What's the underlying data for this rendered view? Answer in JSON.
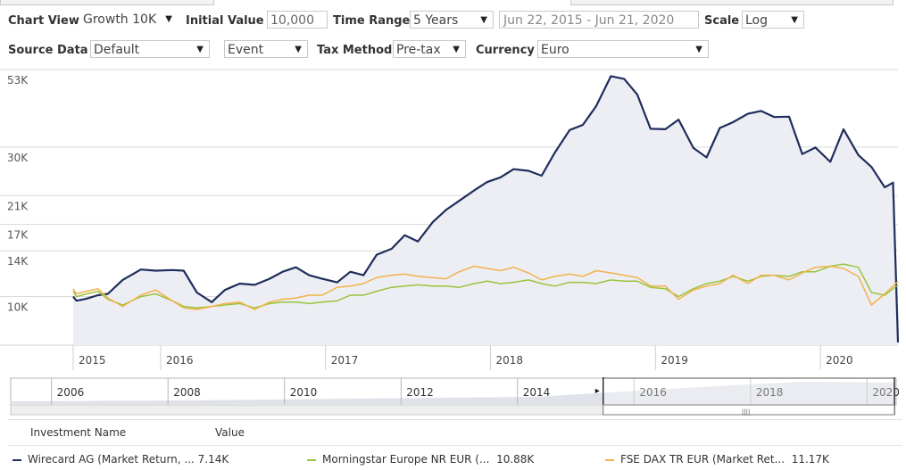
{
  "controls": {
    "chart_view_label": "Chart View",
    "chart_view_value": "Growth 10K",
    "initial_value_label": "Initial Value",
    "initial_value": "10,000",
    "time_range_label": "Time Range",
    "time_range_value": "5 Years",
    "date_range": "Jun 22, 2015 - Jun 21, 2020",
    "scale_label": "Scale",
    "scale_value": "Log",
    "source_data_label": "Source Data",
    "source_data_value": "Default",
    "event_value": "Event",
    "tax_method_label": "Tax Method",
    "tax_method_value": "Pre-tax",
    "currency_label": "Currency",
    "currency_value": "Euro",
    "dropdown_glyph": "▼"
  },
  "chart_data": {
    "type": "line",
    "y_scale": "log",
    "ylim": [
      7000,
      53000
    ],
    "y_ticks": [
      {
        "value": 10000,
        "label": "10K"
      },
      {
        "value": 14000,
        "label": "14K"
      },
      {
        "value": 17000,
        "label": "17K"
      },
      {
        "value": 21000,
        "label": "21K"
      },
      {
        "value": 30000,
        "label": "30K"
      },
      {
        "value": 53000,
        "label": "53K"
      }
    ],
    "x_range": [
      2015.47,
      2020.47
    ],
    "x_ticks": [
      {
        "value": 2015.0,
        "label": "2015"
      },
      {
        "value": 2016.0,
        "label": "2016"
      },
      {
        "value": 2017.0,
        "label": "2017"
      },
      {
        "value": 2018.0,
        "label": "2018"
      },
      {
        "value": 2019.0,
        "label": "2019"
      },
      {
        "value": 2020.0,
        "label": "2020"
      }
    ],
    "grid": true,
    "series": [
      {
        "name": "Wirecard AG (Market Return, ...",
        "color": "#1f2d5c",
        "filled": true,
        "final_value_label": "7.14K",
        "points": [
          [
            2015.47,
            10000
          ],
          [
            2015.49,
            9700
          ],
          [
            2015.55,
            9850
          ],
          [
            2015.62,
            10100
          ],
          [
            2015.68,
            10200
          ],
          [
            2015.77,
            11300
          ],
          [
            2015.88,
            12200
          ],
          [
            2015.97,
            12100
          ],
          [
            2016.07,
            12150
          ],
          [
            2016.14,
            12100
          ],
          [
            2016.22,
            10300
          ],
          [
            2016.31,
            9600
          ],
          [
            2016.39,
            10500
          ],
          [
            2016.48,
            11000
          ],
          [
            2016.57,
            10900
          ],
          [
            2016.66,
            11400
          ],
          [
            2016.74,
            12000
          ],
          [
            2016.82,
            12400
          ],
          [
            2016.9,
            11700
          ],
          [
            2016.98,
            11400
          ],
          [
            2017.07,
            11100
          ],
          [
            2017.15,
            12000
          ],
          [
            2017.23,
            11700
          ],
          [
            2017.31,
            13600
          ],
          [
            2017.4,
            14200
          ],
          [
            2017.48,
            15700
          ],
          [
            2017.56,
            15000
          ],
          [
            2017.65,
            17300
          ],
          [
            2017.73,
            18900
          ],
          [
            2017.81,
            20200
          ],
          [
            2017.9,
            21800
          ],
          [
            2017.98,
            23200
          ],
          [
            2018.06,
            24000
          ],
          [
            2018.14,
            25500
          ],
          [
            2018.23,
            25200
          ],
          [
            2018.31,
            24300
          ],
          [
            2018.39,
            28800
          ],
          [
            2018.48,
            34000
          ],
          [
            2018.56,
            35300
          ],
          [
            2018.64,
            40500
          ],
          [
            2018.73,
            50500
          ],
          [
            2018.81,
            49500
          ],
          [
            2018.89,
            44100
          ],
          [
            2018.97,
            34300
          ],
          [
            2019.06,
            34200
          ],
          [
            2019.14,
            36700
          ],
          [
            2019.23,
            29800
          ],
          [
            2019.31,
            27800
          ],
          [
            2019.39,
            34500
          ],
          [
            2019.47,
            36000
          ],
          [
            2019.56,
            38300
          ],
          [
            2019.64,
            39100
          ],
          [
            2019.72,
            37400
          ],
          [
            2019.81,
            37500
          ],
          [
            2019.89,
            28500
          ],
          [
            2019.97,
            29900
          ],
          [
            2020.06,
            26900
          ],
          [
            2020.14,
            34200
          ],
          [
            2020.23,
            28300
          ],
          [
            2020.31,
            25900
          ],
          [
            2020.39,
            22300
          ],
          [
            2020.44,
            23100
          ],
          [
            2020.47,
            7140
          ]
        ]
      },
      {
        "name": "Morningstar Europe NR EUR (...",
        "color": "#9ac43c",
        "filled": false,
        "final_value_label": "10.88K",
        "points": [
          [
            2015.47,
            10400
          ],
          [
            2015.49,
            10000
          ],
          [
            2015.55,
            10200
          ],
          [
            2015.62,
            10400
          ],
          [
            2015.68,
            9800
          ],
          [
            2015.77,
            9400
          ],
          [
            2015.88,
            10000
          ],
          [
            2015.97,
            10200
          ],
          [
            2016.07,
            9700
          ],
          [
            2016.14,
            9300
          ],
          [
            2016.22,
            9200
          ],
          [
            2016.31,
            9300
          ],
          [
            2016.39,
            9400
          ],
          [
            2016.48,
            9500
          ],
          [
            2016.57,
            9200
          ],
          [
            2016.66,
            9500
          ],
          [
            2016.74,
            9600
          ],
          [
            2016.82,
            9600
          ],
          [
            2016.9,
            9500
          ],
          [
            2016.98,
            9600
          ],
          [
            2017.07,
            9700
          ],
          [
            2017.15,
            10100
          ],
          [
            2017.23,
            10100
          ],
          [
            2017.31,
            10400
          ],
          [
            2017.4,
            10700
          ],
          [
            2017.48,
            10800
          ],
          [
            2017.56,
            10900
          ],
          [
            2017.65,
            10800
          ],
          [
            2017.73,
            10800
          ],
          [
            2017.81,
            10700
          ],
          [
            2017.9,
            11000
          ],
          [
            2017.98,
            11200
          ],
          [
            2018.06,
            11000
          ],
          [
            2018.14,
            11100
          ],
          [
            2018.23,
            11300
          ],
          [
            2018.31,
            11000
          ],
          [
            2018.39,
            10800
          ],
          [
            2018.48,
            11100
          ],
          [
            2018.56,
            11100
          ],
          [
            2018.64,
            11000
          ],
          [
            2018.73,
            11300
          ],
          [
            2018.81,
            11200
          ],
          [
            2018.89,
            11200
          ],
          [
            2018.97,
            10700
          ],
          [
            2019.06,
            10600
          ],
          [
            2019.14,
            10000
          ],
          [
            2019.23,
            10600
          ],
          [
            2019.31,
            11000
          ],
          [
            2019.39,
            11200
          ],
          [
            2019.47,
            11600
          ],
          [
            2019.56,
            11200
          ],
          [
            2019.64,
            11600
          ],
          [
            2019.72,
            11700
          ],
          [
            2019.81,
            11600
          ],
          [
            2019.89,
            12000
          ],
          [
            2019.97,
            12000
          ],
          [
            2020.06,
            12500
          ],
          [
            2020.14,
            12700
          ],
          [
            2020.23,
            12400
          ],
          [
            2020.31,
            10300
          ],
          [
            2020.39,
            10100
          ],
          [
            2020.44,
            10600
          ],
          [
            2020.47,
            10880
          ]
        ]
      },
      {
        "name": "FSE DAX TR EUR (Market Ret...",
        "color": "#f3b24a",
        "filled": false,
        "final_value_label": "11.17K",
        "points": [
          [
            2015.47,
            10600
          ],
          [
            2015.49,
            10200
          ],
          [
            2015.55,
            10400
          ],
          [
            2015.62,
            10600
          ],
          [
            2015.68,
            9900
          ],
          [
            2015.77,
            9300
          ],
          [
            2015.88,
            10100
          ],
          [
            2015.97,
            10500
          ],
          [
            2016.07,
            9700
          ],
          [
            2016.14,
            9200
          ],
          [
            2016.22,
            9100
          ],
          [
            2016.31,
            9300
          ],
          [
            2016.39,
            9500
          ],
          [
            2016.48,
            9600
          ],
          [
            2016.57,
            9100
          ],
          [
            2016.66,
            9600
          ],
          [
            2016.74,
            9800
          ],
          [
            2016.82,
            9900
          ],
          [
            2016.9,
            10100
          ],
          [
            2016.98,
            10100
          ],
          [
            2017.07,
            10700
          ],
          [
            2017.15,
            10800
          ],
          [
            2017.23,
            11000
          ],
          [
            2017.31,
            11500
          ],
          [
            2017.4,
            11700
          ],
          [
            2017.48,
            11800
          ],
          [
            2017.56,
            11600
          ],
          [
            2017.65,
            11500
          ],
          [
            2017.73,
            11400
          ],
          [
            2017.81,
            12000
          ],
          [
            2017.9,
            12500
          ],
          [
            2017.98,
            12300
          ],
          [
            2018.06,
            12100
          ],
          [
            2018.14,
            12400
          ],
          [
            2018.23,
            11900
          ],
          [
            2018.31,
            11300
          ],
          [
            2018.39,
            11600
          ],
          [
            2018.48,
            11800
          ],
          [
            2018.56,
            11600
          ],
          [
            2018.64,
            12100
          ],
          [
            2018.73,
            11900
          ],
          [
            2018.81,
            11700
          ],
          [
            2018.89,
            11500
          ],
          [
            2018.97,
            10800
          ],
          [
            2019.06,
            10800
          ],
          [
            2019.14,
            9800
          ],
          [
            2019.23,
            10500
          ],
          [
            2019.31,
            10800
          ],
          [
            2019.39,
            11000
          ],
          [
            2019.47,
            11700
          ],
          [
            2019.56,
            11000
          ],
          [
            2019.64,
            11700
          ],
          [
            2019.72,
            11700
          ],
          [
            2019.81,
            11300
          ],
          [
            2019.89,
            11900
          ],
          [
            2019.97,
            12400
          ],
          [
            2020.06,
            12500
          ],
          [
            2020.14,
            12300
          ],
          [
            2020.23,
            11600
          ],
          [
            2020.31,
            9400
          ],
          [
            2020.39,
            10200
          ],
          [
            2020.44,
            10800
          ],
          [
            2020.47,
            11170
          ]
        ]
      }
    ]
  },
  "navigator": {
    "years": [
      "2006",
      "2008",
      "2010",
      "2012",
      "2014",
      "2016",
      "2018",
      "2020"
    ],
    "year_values": [
      2006,
      2008,
      2010,
      2012,
      2014,
      2016,
      2018,
      2020
    ],
    "x_range": [
      2005.3,
      2020.5
    ],
    "selection": [
      2015.47,
      2020.47
    ],
    "handle_glyph": "▸",
    "grip_glyph": "||||"
  },
  "legend": {
    "header_name": "Investment Name",
    "header_value": "Value"
  }
}
